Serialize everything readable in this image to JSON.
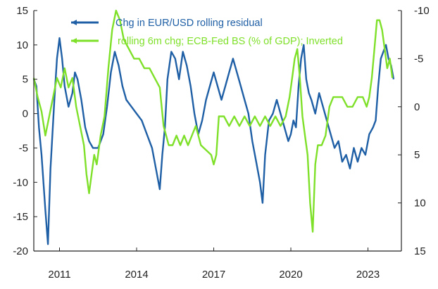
{
  "chart_data": {
    "type": "line",
    "title": "",
    "xlabel": "",
    "x_tick_labels": [
      "2011",
      "2014",
      "2017",
      "2020",
      "2023"
    ],
    "x_ticks": [
      2011,
      2014,
      2017,
      2020,
      2023
    ],
    "xlim": [
      2010.0,
      2024.3
    ],
    "left_axis": {
      "ylim": [
        -20,
        15
      ],
      "ticks": [
        15,
        10,
        5,
        0,
        -5,
        -10,
        -15,
        -20
      ]
    },
    "right_axis": {
      "ylim": [
        -10,
        15
      ],
      "inverted": true,
      "ticks": [
        -10,
        -5,
        0,
        5,
        10,
        15
      ]
    },
    "grid": false,
    "legend_placement": "top-center",
    "series": [
      {
        "name": "Chg in EUR/USD rolling residual",
        "axis": "left",
        "color": "#1f5fa5",
        "points": [
          [
            2010.0,
            5
          ],
          [
            2010.1,
            4
          ],
          [
            2010.2,
            -2
          ],
          [
            2010.3,
            -6
          ],
          [
            2010.45,
            -14
          ],
          [
            2010.55,
            -19
          ],
          [
            2010.65,
            -8
          ],
          [
            2010.8,
            2
          ],
          [
            2010.9,
            8
          ],
          [
            2011.0,
            11
          ],
          [
            2011.1,
            8
          ],
          [
            2011.2,
            4
          ],
          [
            2011.35,
            1
          ],
          [
            2011.5,
            3
          ],
          [
            2011.6,
            6
          ],
          [
            2011.7,
            5
          ],
          [
            2011.85,
            2
          ],
          [
            2012.0,
            -2
          ],
          [
            2012.15,
            -4
          ],
          [
            2012.3,
            -5
          ],
          [
            2012.5,
            -5
          ],
          [
            2012.7,
            -3
          ],
          [
            2012.85,
            1
          ],
          [
            2013.0,
            6
          ],
          [
            2013.15,
            9
          ],
          [
            2013.3,
            7
          ],
          [
            2013.45,
            4
          ],
          [
            2013.6,
            2
          ],
          [
            2013.8,
            1
          ],
          [
            2014.0,
            0
          ],
          [
            2014.2,
            -1
          ],
          [
            2014.4,
            -3
          ],
          [
            2014.6,
            -5
          ],
          [
            2014.75,
            -8
          ],
          [
            2014.9,
            -11
          ],
          [
            2015.0,
            -6
          ],
          [
            2015.1,
            -2
          ],
          [
            2015.2,
            5
          ],
          [
            2015.35,
            9
          ],
          [
            2015.5,
            8
          ],
          [
            2015.65,
            5
          ],
          [
            2015.8,
            9
          ],
          [
            2015.95,
            7
          ],
          [
            2016.1,
            4
          ],
          [
            2016.25,
            0
          ],
          [
            2016.4,
            -3
          ],
          [
            2016.55,
            -1
          ],
          [
            2016.7,
            2
          ],
          [
            2016.85,
            4
          ],
          [
            2017.0,
            6
          ],
          [
            2017.15,
            4
          ],
          [
            2017.3,
            2
          ],
          [
            2017.45,
            4
          ],
          [
            2017.6,
            6
          ],
          [
            2017.75,
            8
          ],
          [
            2017.9,
            6
          ],
          [
            2018.05,
            4
          ],
          [
            2018.2,
            2
          ],
          [
            2018.35,
            0
          ],
          [
            2018.5,
            -4
          ],
          [
            2018.65,
            -7
          ],
          [
            2018.8,
            -10
          ],
          [
            2018.9,
            -13
          ],
          [
            2019.0,
            -6
          ],
          [
            2019.15,
            -1
          ],
          [
            2019.3,
            0
          ],
          [
            2019.45,
            2
          ],
          [
            2019.6,
            0
          ],
          [
            2019.75,
            -2
          ],
          [
            2019.9,
            -4
          ],
          [
            2020.0,
            -3
          ],
          [
            2020.1,
            -1
          ],
          [
            2020.2,
            -2
          ],
          [
            2020.3,
            4
          ],
          [
            2020.4,
            8
          ],
          [
            2020.5,
            10
          ],
          [
            2020.6,
            5
          ],
          [
            2020.7,
            3
          ],
          [
            2020.8,
            2
          ],
          [
            2020.95,
            0
          ],
          [
            2021.1,
            3
          ],
          [
            2021.25,
            1
          ],
          [
            2021.4,
            -1
          ],
          [
            2021.55,
            -3
          ],
          [
            2021.7,
            -5
          ],
          [
            2021.85,
            -4
          ],
          [
            2022.0,
            -7
          ],
          [
            2022.15,
            -6
          ],
          [
            2022.3,
            -8
          ],
          [
            2022.45,
            -5
          ],
          [
            2022.6,
            -7
          ],
          [
            2022.75,
            -5
          ],
          [
            2022.9,
            -6
          ],
          [
            2023.05,
            -3
          ],
          [
            2023.2,
            -2
          ],
          [
            2023.3,
            -1
          ],
          [
            2023.4,
            4
          ],
          [
            2023.5,
            8
          ],
          [
            2023.6,
            9
          ],
          [
            2023.7,
            10
          ],
          [
            2023.8,
            8
          ],
          [
            2023.9,
            7
          ],
          [
            2024.0,
            5
          ]
        ]
      },
      {
        "name": "rolling 6m chg; ECB-Fed BS (% of GDP); Inverted",
        "axis": "right",
        "color": "#7fe02a",
        "points": [
          [
            2010.0,
            -3
          ],
          [
            2010.15,
            -1
          ],
          [
            2010.3,
            0.5
          ],
          [
            2010.45,
            3
          ],
          [
            2010.6,
            1
          ],
          [
            2010.75,
            -1
          ],
          [
            2010.9,
            -3
          ],
          [
            2011.05,
            -2
          ],
          [
            2011.2,
            -4
          ],
          [
            2011.35,
            -2
          ],
          [
            2011.5,
            -3
          ],
          [
            2011.65,
            0
          ],
          [
            2011.8,
            2
          ],
          [
            2011.95,
            4
          ],
          [
            2012.05,
            7
          ],
          [
            2012.15,
            9
          ],
          [
            2012.25,
            7
          ],
          [
            2012.35,
            5
          ],
          [
            2012.45,
            6
          ],
          [
            2012.6,
            3
          ],
          [
            2012.75,
            1
          ],
          [
            2012.9,
            -4
          ],
          [
            2013.05,
            -8
          ],
          [
            2013.2,
            -10
          ],
          [
            2013.35,
            -9
          ],
          [
            2013.5,
            -7
          ],
          [
            2013.7,
            -6
          ],
          [
            2013.9,
            -5
          ],
          [
            2014.1,
            -5
          ],
          [
            2014.3,
            -4
          ],
          [
            2014.5,
            -4
          ],
          [
            2014.7,
            -3
          ],
          [
            2014.9,
            -2
          ],
          [
            2015.05,
            2
          ],
          [
            2015.15,
            3
          ],
          [
            2015.25,
            4
          ],
          [
            2015.4,
            4
          ],
          [
            2015.55,
            3
          ],
          [
            2015.7,
            4
          ],
          [
            2015.85,
            3
          ],
          [
            2016.0,
            4
          ],
          [
            2016.15,
            3
          ],
          [
            2016.3,
            2
          ],
          [
            2016.5,
            4
          ],
          [
            2016.7,
            4.5
          ],
          [
            2016.9,
            5
          ],
          [
            2017.0,
            6
          ],
          [
            2017.1,
            5
          ],
          [
            2017.2,
            1
          ],
          [
            2017.4,
            1
          ],
          [
            2017.6,
            2
          ],
          [
            2017.8,
            1
          ],
          [
            2018.0,
            2
          ],
          [
            2018.2,
            1
          ],
          [
            2018.4,
            2
          ],
          [
            2018.6,
            1
          ],
          [
            2018.8,
            2
          ],
          [
            2019.0,
            1
          ],
          [
            2019.2,
            2
          ],
          [
            2019.4,
            1
          ],
          [
            2019.6,
            2
          ],
          [
            2019.8,
            1
          ],
          [
            2019.95,
            -1
          ],
          [
            2020.05,
            -3
          ],
          [
            2020.15,
            -5
          ],
          [
            2020.25,
            -6
          ],
          [
            2020.35,
            -3
          ],
          [
            2020.45,
            1
          ],
          [
            2020.55,
            3
          ],
          [
            2020.65,
            5
          ],
          [
            2020.75,
            10
          ],
          [
            2020.85,
            13
          ],
          [
            2020.95,
            6
          ],
          [
            2021.05,
            4
          ],
          [
            2021.2,
            4
          ],
          [
            2021.35,
            3
          ],
          [
            2021.5,
            0
          ],
          [
            2021.65,
            -1
          ],
          [
            2021.8,
            -1
          ],
          [
            2022.0,
            -1
          ],
          [
            2022.2,
            0
          ],
          [
            2022.4,
            0
          ],
          [
            2022.6,
            -1
          ],
          [
            2022.8,
            -1
          ],
          [
            2022.95,
            0
          ],
          [
            2023.05,
            -1
          ],
          [
            2023.15,
            -3
          ],
          [
            2023.25,
            -6
          ],
          [
            2023.35,
            -9
          ],
          [
            2023.45,
            -9
          ],
          [
            2023.55,
            -8
          ],
          [
            2023.65,
            -6
          ],
          [
            2023.75,
            -4
          ],
          [
            2023.85,
            -5
          ],
          [
            2023.95,
            -3
          ]
        ]
      }
    ]
  }
}
